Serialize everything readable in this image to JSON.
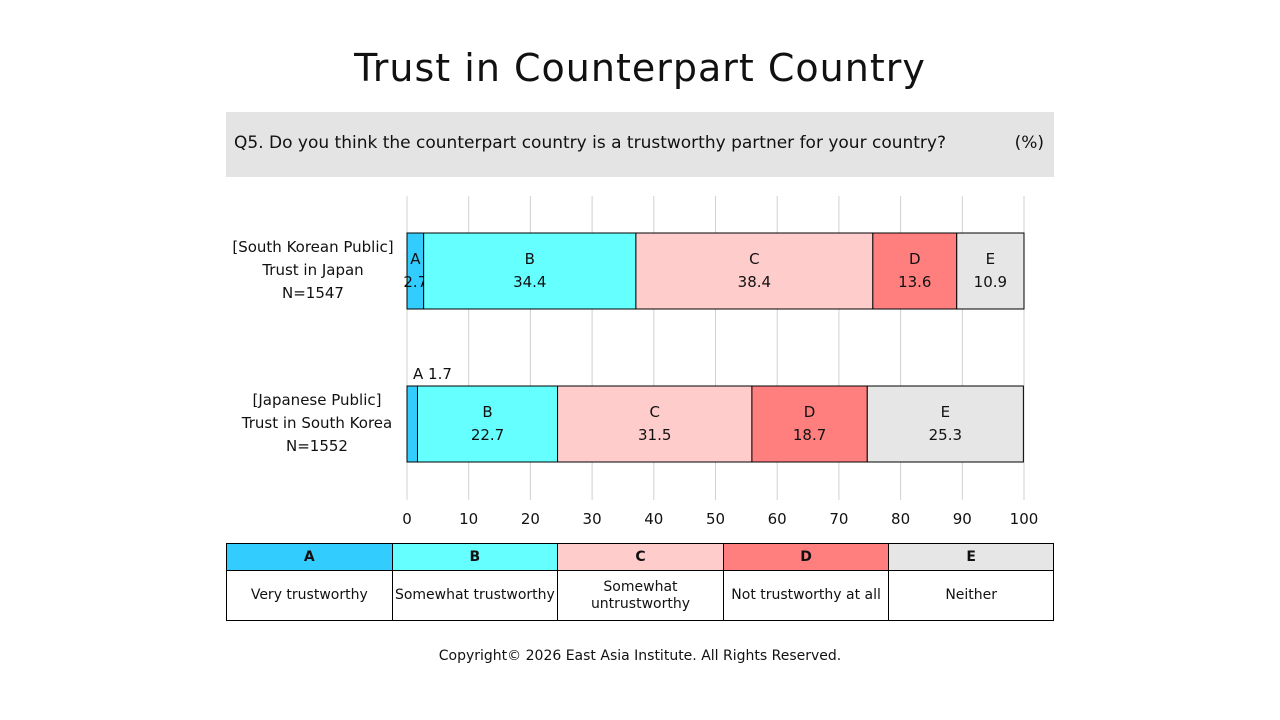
{
  "title": "Trust in Counterpart Country",
  "question": "Q5. Do you think the counterpart country is a trustworthy partner for your country?",
  "unit": "(%)",
  "chart_data": {
    "type": "bar",
    "orientation": "horizontal",
    "stacked": true,
    "xlim": [
      0,
      100
    ],
    "xticks": [
      0,
      10,
      20,
      30,
      40,
      50,
      60,
      70,
      80,
      90,
      100
    ],
    "grid": true,
    "rows": [
      {
        "label_lines": [
          "[South Korean Public]",
          "Trust in Japan",
          "N=1547"
        ],
        "values": [
          2.7,
          34.4,
          38.4,
          13.6,
          10.9
        ]
      },
      {
        "label_lines": [
          "[Japanese Public]",
          "Trust in South Korea",
          "N=1552"
        ],
        "values": [
          1.7,
          22.7,
          31.5,
          18.7,
          25.3
        ],
        "outside_label": "A 1.7"
      }
    ],
    "categories": [
      "A",
      "B",
      "C",
      "D",
      "E"
    ],
    "colors": [
      "#33ccff",
      "#66ffff",
      "#ffcccc",
      "#ff7f7f",
      "#e6e6e6"
    ]
  },
  "legend": [
    {
      "key": "A",
      "desc": "Very trustworthy"
    },
    {
      "key": "B",
      "desc": "Somewhat trustworthy"
    },
    {
      "key": "C",
      "desc": "Somewhat untrustworthy"
    },
    {
      "key": "D",
      "desc": "Not trustworthy at all"
    },
    {
      "key": "E",
      "desc": "Neither"
    }
  ],
  "copyright": "Copyright© 2026 East Asia Institute. All Rights Reserved."
}
